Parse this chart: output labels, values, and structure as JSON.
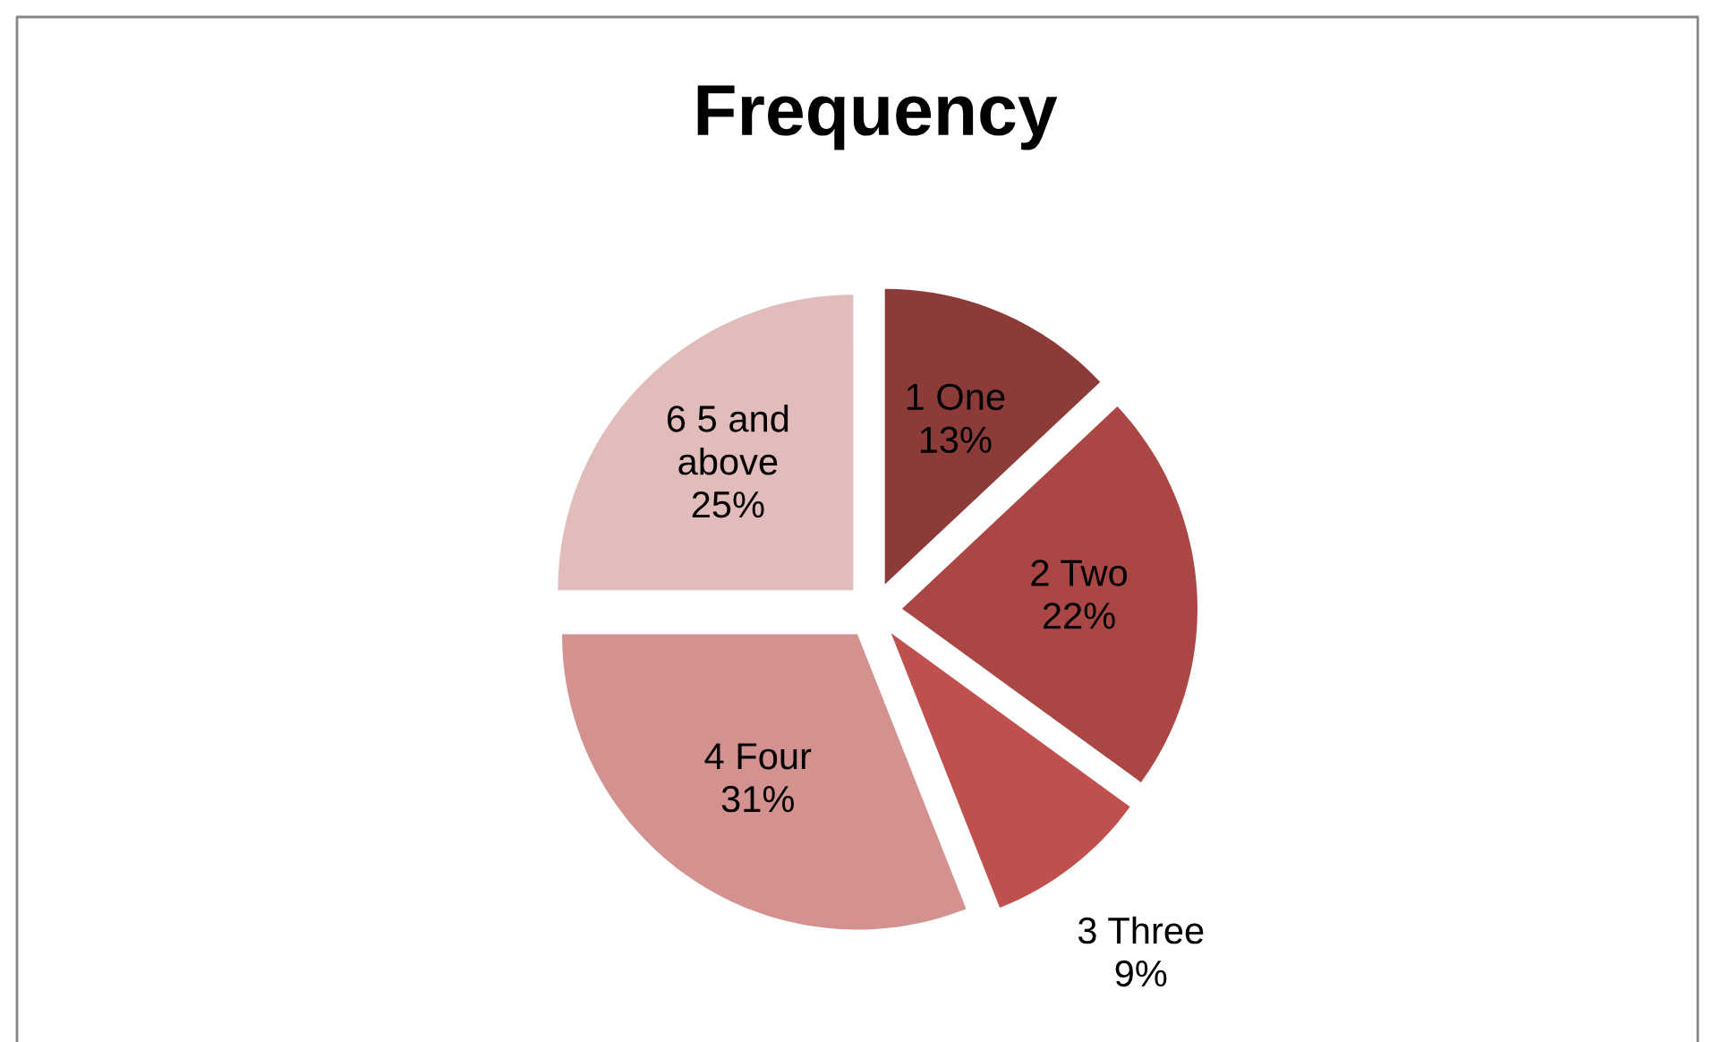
{
  "chart_data": {
    "type": "pie",
    "title": "Frequency",
    "categories": [
      "1 One",
      "2 Two",
      "3 Three",
      "4 Four",
      "6 5 and above"
    ],
    "values": [
      13,
      22,
      9,
      31,
      25
    ],
    "value_labels": [
      "13%",
      "22%",
      "9%",
      "31%",
      "25%"
    ],
    "colors": [
      "#8d3b39",
      "#aa4644",
      "#c0504d",
      "#d39190",
      "#e2bbbb"
    ]
  }
}
